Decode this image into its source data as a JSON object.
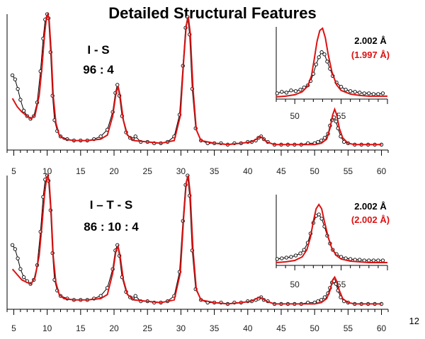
{
  "title": "Detailed Structural Features",
  "page_number": "12",
  "colors": {
    "observed": "#000000",
    "calculated": "#dd1111",
    "axis": "#000000"
  },
  "chart_data": [
    {
      "type": "line",
      "x_range": [
        4,
        61
      ],
      "xticks": [
        5,
        10,
        15,
        20,
        25,
        30,
        35,
        40,
        45,
        50,
        55,
        60
      ],
      "sample_label": "I - S",
      "ratio_label": "96 : 4",
      "grid": false,
      "series": [
        {
          "role": "observed",
          "color": "#000000",
          "marker": "circle",
          "x": [
            4.8,
            5.2,
            5.6,
            6.0,
            6.5,
            7.0,
            7.5,
            8.0,
            8.5,
            9.0,
            9.4,
            9.7,
            10.0,
            10.2,
            10.5,
            10.8,
            11.1,
            11.5,
            12.0,
            13,
            14,
            15,
            16,
            17,
            18,
            19,
            19.8,
            20.2,
            20.5,
            20.8,
            21.2,
            21.8,
            22.4,
            22.8,
            23.2,
            24,
            25,
            26,
            27,
            28,
            29,
            29.8,
            30.3,
            30.7,
            31.0,
            31.3,
            31.7,
            32.2,
            33,
            34,
            35,
            36,
            37,
            38,
            39,
            40,
            40.6,
            41.2,
            41.6,
            42.0,
            42.4,
            43,
            44,
            45,
            46,
            47,
            48,
            49,
            50,
            50.5,
            51,
            51.5,
            52,
            52.3,
            52.6,
            52.9,
            53.2,
            53.5,
            53.9,
            54.4,
            55,
            56,
            57,
            58,
            59,
            60
          ],
          "y": [
            0.55,
            0.52,
            0.45,
            0.37,
            0.29,
            0.25,
            0.23,
            0.25,
            0.35,
            0.58,
            0.82,
            0.96,
            1.0,
            0.97,
            0.72,
            0.4,
            0.22,
            0.14,
            0.1,
            0.08,
            0.07,
            0.07,
            0.07,
            0.08,
            0.1,
            0.15,
            0.28,
            0.42,
            0.48,
            0.4,
            0.25,
            0.13,
            0.09,
            0.08,
            0.1,
            0.06,
            0.06,
            0.05,
            0.05,
            0.06,
            0.1,
            0.26,
            0.62,
            0.9,
            0.98,
            0.85,
            0.45,
            0.16,
            0.07,
            0.05,
            0.05,
            0.05,
            0.04,
            0.05,
            0.05,
            0.06,
            0.06,
            0.07,
            0.09,
            0.1,
            0.08,
            0.06,
            0.04,
            0.04,
            0.04,
            0.04,
            0.04,
            0.05,
            0.05,
            0.06,
            0.07,
            0.09,
            0.12,
            0.18,
            0.22,
            0.24,
            0.21,
            0.16,
            0.1,
            0.06,
            0.05,
            0.04,
            0.04,
            0.04,
            0.04,
            0.04
          ]
        },
        {
          "role": "calculated",
          "color": "#dd1111",
          "x": [
            4.8,
            5.5,
            6.2,
            7,
            7.6,
            8.2,
            8.8,
            9.2,
            9.6,
            9.9,
            10.1,
            10.3,
            10.6,
            10.9,
            11.3,
            11.8,
            12.5,
            14,
            16,
            18,
            19,
            19.8,
            20.3,
            20.6,
            20.9,
            21.4,
            22,
            23,
            25,
            27,
            29,
            29.9,
            30.4,
            30.8,
            31.1,
            31.4,
            31.8,
            32.3,
            33,
            35,
            37,
            39,
            40.5,
            41.3,
            41.8,
            42.2,
            42.8,
            44,
            46,
            48,
            50,
            51,
            51.8,
            52.3,
            52.7,
            53.0,
            53.3,
            53.7,
            54.2,
            55,
            56,
            58,
            60
          ],
          "y": [
            0.38,
            0.32,
            0.28,
            0.25,
            0.23,
            0.26,
            0.4,
            0.6,
            0.85,
            0.98,
            1.0,
            0.95,
            0.72,
            0.4,
            0.2,
            0.11,
            0.08,
            0.07,
            0.07,
            0.08,
            0.11,
            0.25,
            0.42,
            0.47,
            0.4,
            0.22,
            0.11,
            0.07,
            0.06,
            0.05,
            0.07,
            0.25,
            0.65,
            0.92,
            0.98,
            0.86,
            0.46,
            0.15,
            0.07,
            0.05,
            0.04,
            0.05,
            0.06,
            0.08,
            0.1,
            0.09,
            0.06,
            0.04,
            0.04,
            0.04,
            0.04,
            0.05,
            0.08,
            0.16,
            0.26,
            0.3,
            0.26,
            0.16,
            0.09,
            0.05,
            0.04,
            0.04,
            0.04
          ]
        }
      ],
      "inset": {
        "x_range": [
          48,
          60
        ],
        "xticks": [
          50,
          55
        ],
        "d_obs": "2.002 Å",
        "d_calc": "(1.997 Å)",
        "series": [
          {
            "role": "observed",
            "color": "#000000",
            "marker": "circle",
            "x": [
              48.1,
              48.6,
              49.1,
              49.6,
              50.1,
              50.6,
              51.0,
              51.4,
              51.7,
              52.0,
              52.3,
              52.6,
              52.9,
              53.2,
              53.5,
              53.8,
              54.1,
              54.5,
              55,
              55.5,
              56,
              56.5,
              57,
              57.5,
              58,
              58.5,
              59,
              59.5
            ],
            "y": [
              0.08,
              0.1,
              0.09,
              0.12,
              0.11,
              0.13,
              0.16,
              0.19,
              0.25,
              0.35,
              0.48,
              0.58,
              0.65,
              0.62,
              0.52,
              0.42,
              0.32,
              0.23,
              0.17,
              0.13,
              0.11,
              0.1,
              0.09,
              0.08,
              0.08,
              0.07,
              0.07,
              0.08
            ]
          },
          {
            "role": "calculated",
            "color": "#dd1111",
            "x": [
              48,
              49,
              50,
              50.8,
              51.4,
              51.8,
              52.1,
              52.4,
              52.7,
              53.0,
              53.3,
              53.6,
              54.0,
              54.5,
              55,
              56,
              57,
              58,
              59,
              60
            ],
            "y": [
              0.03,
              0.04,
              0.06,
              0.1,
              0.18,
              0.32,
              0.55,
              0.8,
              0.95,
              0.98,
              0.85,
              0.62,
              0.38,
              0.2,
              0.12,
              0.07,
              0.05,
              0.04,
              0.04,
              0.04
            ]
          }
        ]
      }
    },
    {
      "type": "line",
      "x_range": [
        4,
        61
      ],
      "xticks": [
        5,
        10,
        15,
        20,
        25,
        30,
        35,
        40,
        45,
        50,
        55,
        60
      ],
      "sample_label": "I – T - S",
      "ratio_label": "86 : 10 : 4",
      "grid": false,
      "series": [
        {
          "role": "observed",
          "color": "#000000",
          "marker": "circle",
          "x": [
            4.8,
            5.2,
            5.6,
            6.0,
            6.5,
            7.0,
            7.5,
            8.0,
            8.5,
            9.0,
            9.4,
            9.7,
            10.0,
            10.2,
            10.5,
            10.8,
            11.1,
            11.5,
            12.0,
            13,
            14,
            15,
            16,
            17,
            18,
            19,
            19.8,
            20.2,
            20.5,
            20.8,
            21.2,
            21.8,
            22.4,
            22.8,
            23.2,
            24,
            25,
            26,
            27,
            28,
            29,
            29.8,
            30.3,
            30.7,
            31.0,
            31.3,
            31.7,
            32.2,
            33,
            34,
            35,
            36,
            37,
            38,
            39,
            40,
            40.6,
            41.2,
            41.6,
            42.0,
            42.4,
            43,
            44,
            45,
            46,
            47,
            48,
            49,
            50,
            50.5,
            51,
            51.5,
            52,
            52.3,
            52.6,
            52.9,
            53.2,
            53.5,
            53.9,
            54.4,
            55,
            56,
            57,
            58,
            59,
            60
          ],
          "y": [
            0.48,
            0.45,
            0.38,
            0.3,
            0.24,
            0.21,
            0.19,
            0.22,
            0.33,
            0.58,
            0.84,
            0.97,
            1.0,
            0.96,
            0.74,
            0.42,
            0.22,
            0.14,
            0.1,
            0.08,
            0.07,
            0.07,
            0.07,
            0.08,
            0.1,
            0.16,
            0.3,
            0.44,
            0.48,
            0.4,
            0.24,
            0.13,
            0.09,
            0.08,
            0.1,
            0.06,
            0.06,
            0.05,
            0.05,
            0.06,
            0.1,
            0.28,
            0.66,
            0.93,
            1.0,
            0.85,
            0.44,
            0.15,
            0.07,
            0.05,
            0.05,
            0.05,
            0.04,
            0.05,
            0.05,
            0.06,
            0.06,
            0.07,
            0.08,
            0.09,
            0.07,
            0.06,
            0.04,
            0.04,
            0.04,
            0.04,
            0.04,
            0.05,
            0.05,
            0.06,
            0.07,
            0.09,
            0.12,
            0.16,
            0.2,
            0.21,
            0.19,
            0.14,
            0.09,
            0.06,
            0.05,
            0.04,
            0.04,
            0.04,
            0.04,
            0.04
          ]
        },
        {
          "role": "calculated",
          "color": "#dd1111",
          "x": [
            4.8,
            5.5,
            6.2,
            7,
            7.6,
            8.2,
            8.8,
            9.2,
            9.6,
            9.9,
            10.1,
            10.3,
            10.6,
            10.9,
            11.3,
            11.8,
            12.5,
            14,
            16,
            18,
            19,
            19.8,
            20.3,
            20.6,
            20.9,
            21.4,
            22,
            23,
            25,
            27,
            29,
            29.9,
            30.4,
            30.8,
            31.1,
            31.4,
            31.8,
            32.3,
            33,
            35,
            37,
            39,
            40.5,
            41.3,
            41.8,
            42.2,
            42.8,
            44,
            46,
            48,
            50,
            51,
            51.8,
            52.3,
            52.7,
            53.0,
            53.3,
            53.7,
            54.2,
            55,
            56,
            58,
            60
          ],
          "y": [
            0.3,
            0.26,
            0.22,
            0.2,
            0.19,
            0.24,
            0.4,
            0.62,
            0.86,
            0.98,
            1.0,
            0.95,
            0.72,
            0.4,
            0.2,
            0.11,
            0.08,
            0.07,
            0.07,
            0.08,
            0.11,
            0.27,
            0.44,
            0.47,
            0.4,
            0.22,
            0.11,
            0.07,
            0.06,
            0.05,
            0.07,
            0.27,
            0.68,
            0.95,
            1.0,
            0.86,
            0.45,
            0.15,
            0.07,
            0.05,
            0.04,
            0.05,
            0.06,
            0.08,
            0.09,
            0.08,
            0.06,
            0.04,
            0.04,
            0.04,
            0.04,
            0.05,
            0.08,
            0.14,
            0.22,
            0.24,
            0.21,
            0.14,
            0.08,
            0.05,
            0.04,
            0.04,
            0.04
          ]
        }
      ],
      "inset": {
        "x_range": [
          48,
          60
        ],
        "xticks": [
          50,
          55
        ],
        "d_obs": "2.002 Å",
        "d_calc": "(2.002 Å)",
        "series": [
          {
            "role": "observed",
            "color": "#000000",
            "marker": "circle",
            "x": [
              48.1,
              48.6,
              49.1,
              49.6,
              50.1,
              50.6,
              51.0,
              51.4,
              51.7,
              52.0,
              52.3,
              52.6,
              52.9,
              53.2,
              53.5,
              53.8,
              54.1,
              54.5,
              55,
              55.5,
              56,
              56.5,
              57,
              57.5,
              58,
              58.5,
              59,
              59.5
            ],
            "y": [
              0.09,
              0.1,
              0.11,
              0.12,
              0.14,
              0.17,
              0.22,
              0.32,
              0.45,
              0.6,
              0.7,
              0.72,
              0.66,
              0.55,
              0.42,
              0.31,
              0.22,
              0.16,
              0.12,
              0.1,
              0.09,
              0.08,
              0.08,
              0.07,
              0.07,
              0.07,
              0.07,
              0.07
            ]
          },
          {
            "role": "calculated",
            "color": "#dd1111",
            "x": [
              48,
              49,
              50,
              50.8,
              51.3,
              51.7,
              52.0,
              52.3,
              52.6,
              52.9,
              53.2,
              53.6,
              54.0,
              54.5,
              55,
              56,
              57,
              58,
              59,
              60
            ],
            "y": [
              0.04,
              0.05,
              0.07,
              0.12,
              0.22,
              0.4,
              0.62,
              0.8,
              0.86,
              0.8,
              0.62,
              0.4,
              0.24,
              0.14,
              0.09,
              0.06,
              0.05,
              0.04,
              0.04,
              0.04
            ]
          }
        ]
      }
    }
  ]
}
